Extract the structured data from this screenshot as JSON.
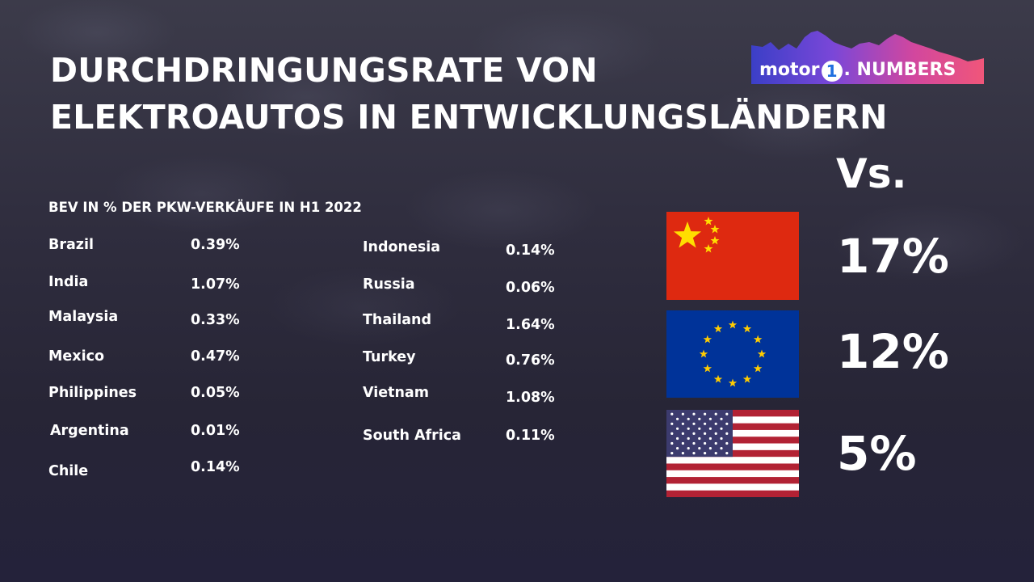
{
  "title": {
    "line1": "DURCHDRINGUNGSRATE VON",
    "line2": "ELEKTROAUTOS IN ENTWICKLUNGSLÄNDERN"
  },
  "logo": {
    "part1": "motor",
    "part2": "1",
    "part3": ". NUMBERS"
  },
  "vs_label": "Vs.",
  "chart_data": {
    "type": "table",
    "title": "BEV IN % DER PKW-VERKÄUFE IN H1 2022",
    "countries": [
      {
        "name": "Brazil",
        "value": "0.39%"
      },
      {
        "name": "India",
        "value": "1.07%"
      },
      {
        "name": "Malaysia",
        "value": "0.33%"
      },
      {
        "name": "Mexico",
        "value": "0.47%"
      },
      {
        "name": "Philippines",
        "value": "0.05%"
      },
      {
        "name": "Argentina",
        "value": "0.01%"
      },
      {
        "name": "Chile",
        "value": "0.14%"
      },
      {
        "name": "Indonesia",
        "value": "0.14%"
      },
      {
        "name": "Russia",
        "value": "0.06%"
      },
      {
        "name": "Thailand",
        "value": "1.64%"
      },
      {
        "name": "Turkey",
        "value": "0.76%"
      },
      {
        "name": "Vietnam",
        "value": "1.08%"
      },
      {
        "name": "South Africa",
        "value": "0.11%"
      }
    ],
    "comparison": [
      {
        "flag": "china-flag",
        "value": "17%"
      },
      {
        "flag": "eu-flag",
        "value": "12%"
      },
      {
        "flag": "usa-flag",
        "value": "5%"
      }
    ]
  },
  "colors": {
    "china_red": "#de2910",
    "china_yellow": "#ffde00",
    "eu_blue": "#003399",
    "eu_yellow": "#ffcc00",
    "usa_red": "#b22234",
    "usa_blue": "#3c3b6e"
  }
}
